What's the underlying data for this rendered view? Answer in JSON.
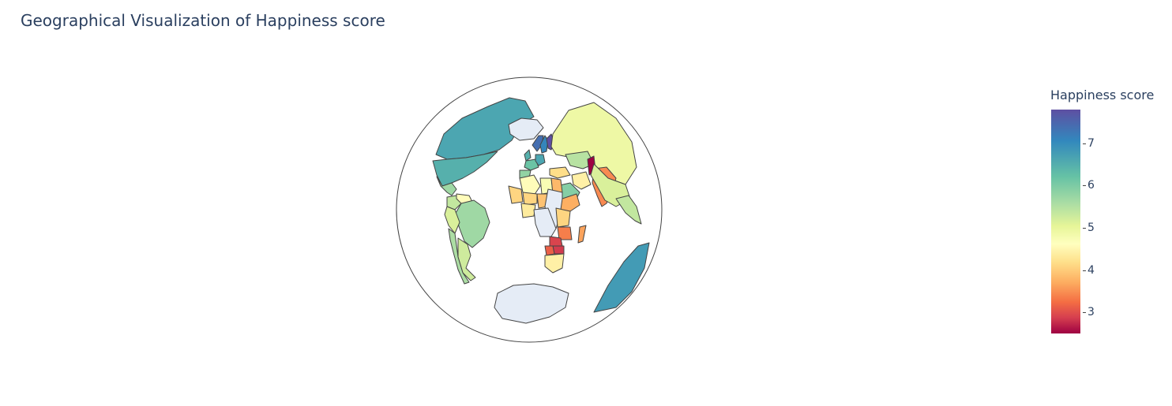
{
  "title": "Geographical Visualization of Happiness score",
  "colorbar": {
    "title": "Happiness score",
    "ticks": [
      "7",
      "6",
      "5",
      "4",
      "3"
    ],
    "range": [
      2.5,
      7.8
    ],
    "colorscale": "Spectral"
  },
  "map": {
    "projection": "orthographic",
    "country_outline": "#444444",
    "no_data_color": "#e5ecf6"
  },
  "chart_data": {
    "type": "choropleth",
    "title": "Geographical Visualization of Happiness score",
    "colorbar_title": "Happiness score",
    "colorbar_range": [
      2.5,
      7.8
    ],
    "regions": [
      {
        "name": "Canada",
        "value": 7.0
      },
      {
        "name": "United States",
        "value": 6.9
      },
      {
        "name": "Mexico",
        "value": 6.3
      },
      {
        "name": "Colombia",
        "value": 6.0
      },
      {
        "name": "Venezuela",
        "value": 5.1
      },
      {
        "name": "Brazil",
        "value": 6.3
      },
      {
        "name": "Peru",
        "value": 5.8
      },
      {
        "name": "Argentina",
        "value": 5.9
      },
      {
        "name": "Chile",
        "value": 6.2
      },
      {
        "name": "Greenland",
        "value": null
      },
      {
        "name": "Norway",
        "value": 7.5
      },
      {
        "name": "Sweden",
        "value": 7.3
      },
      {
        "name": "Finland",
        "value": 7.8
      },
      {
        "name": "United Kingdom",
        "value": 6.9
      },
      {
        "name": "France",
        "value": 6.7
      },
      {
        "name": "Germany",
        "value": 7.0
      },
      {
        "name": "Spain",
        "value": 6.4
      },
      {
        "name": "Russia",
        "value": 5.5
      },
      {
        "name": "Kazakhstan",
        "value": 6.1
      },
      {
        "name": "Turkey",
        "value": 4.6
      },
      {
        "name": "Iran",
        "value": 4.9
      },
      {
        "name": "Afghanistan",
        "value": 2.5
      },
      {
        "name": "Saudi Arabia",
        "value": 6.5
      },
      {
        "name": "India",
        "value": 3.8
      },
      {
        "name": "China",
        "value": 5.8
      },
      {
        "name": "Thailand",
        "value": 6.0
      },
      {
        "name": "Algeria",
        "value": 5.1
      },
      {
        "name": "Libya",
        "value": 5.3
      },
      {
        "name": "Egypt",
        "value": 4.2
      },
      {
        "name": "Mali",
        "value": 4.5
      },
      {
        "name": "Niger",
        "value": 4.5
      },
      {
        "name": "Chad",
        "value": 4.3
      },
      {
        "name": "Sudan",
        "value": null
      },
      {
        "name": "Nigeria",
        "value": 4.8
      },
      {
        "name": "Ethiopia",
        "value": 4.1
      },
      {
        "name": "Kenya",
        "value": 4.5
      },
      {
        "name": "DR Congo",
        "value": null
      },
      {
        "name": "Tanzania",
        "value": 3.7
      },
      {
        "name": "Zambia",
        "value": 3.1
      },
      {
        "name": "Zimbabwe",
        "value": 3.0
      },
      {
        "name": "Botswana",
        "value": 3.4
      },
      {
        "name": "South Africa",
        "value": 4.9
      },
      {
        "name": "Madagascar",
        "value": 4.0
      },
      {
        "name": "Australia",
        "value": 7.1
      },
      {
        "name": "Antarctica",
        "value": null
      }
    ]
  }
}
